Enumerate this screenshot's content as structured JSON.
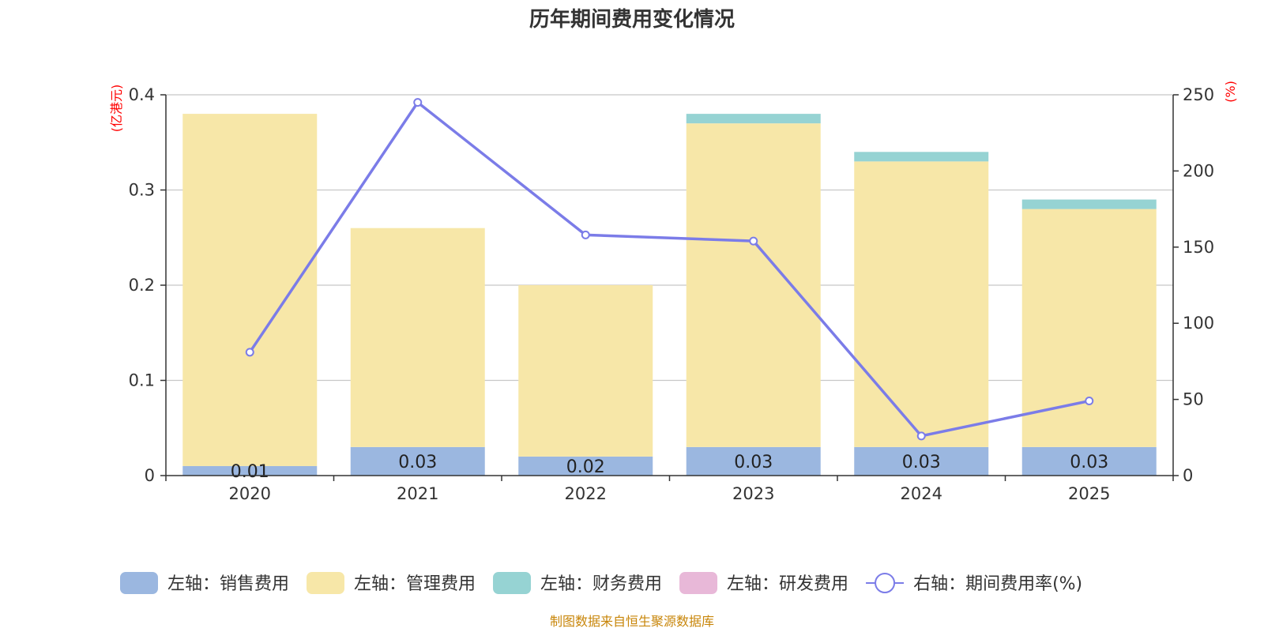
{
  "chart_data": {
    "type": "bar",
    "title": "历年期间费用变化情况",
    "categories": [
      "2020",
      "2021",
      "2022",
      "2023",
      "2024",
      "2025"
    ],
    "left_axis": {
      "unit": "(亿港元)",
      "ylim": [
        0,
        0.4
      ],
      "ticks": [
        "0",
        "0.1",
        "0.2",
        "0.3",
        "0.4"
      ],
      "tick_values": [
        0,
        0.1,
        0.2,
        0.3,
        0.4
      ]
    },
    "right_axis": {
      "unit": "(%)",
      "ylim": [
        0,
        250
      ],
      "ticks": [
        "0",
        "50",
        "100",
        "150",
        "200",
        "250"
      ],
      "tick_values": [
        0,
        50,
        100,
        150,
        200,
        250
      ]
    },
    "series": [
      {
        "name": "左轴：销售费用",
        "axis": "left",
        "kind": "bar",
        "color": "#9bb7e0",
        "values": [
          0.01,
          0.03,
          0.02,
          0.03,
          0.03,
          0.03
        ],
        "labels": [
          "0.01",
          "0.03",
          "0.02",
          "0.03",
          "0.03",
          "0.03"
        ]
      },
      {
        "name": "左轴：管理费用",
        "axis": "left",
        "kind": "bar",
        "color": "#f7e7a8",
        "values": [
          0.37,
          0.23,
          0.18,
          0.34,
          0.3,
          0.25
        ]
      },
      {
        "name": "左轴：财务费用",
        "axis": "left",
        "kind": "bar",
        "color": "#96d3d3",
        "values": [
          0,
          0,
          0,
          0.01,
          0.01,
          0.01
        ]
      },
      {
        "name": "左轴：研发费用",
        "axis": "left",
        "kind": "bar",
        "color": "#e8b8d8",
        "values": [
          0,
          0,
          0,
          0,
          0,
          0
        ]
      },
      {
        "name": "右轴：期间费用率(%)",
        "axis": "right",
        "kind": "line",
        "color": "#7b7ce8",
        "values": [
          81,
          245,
          158,
          154,
          26,
          49
        ]
      }
    ],
    "grid": true,
    "legend_position": "bottom"
  },
  "footer": {
    "source": "制图数据来自恒生聚源数据库"
  }
}
